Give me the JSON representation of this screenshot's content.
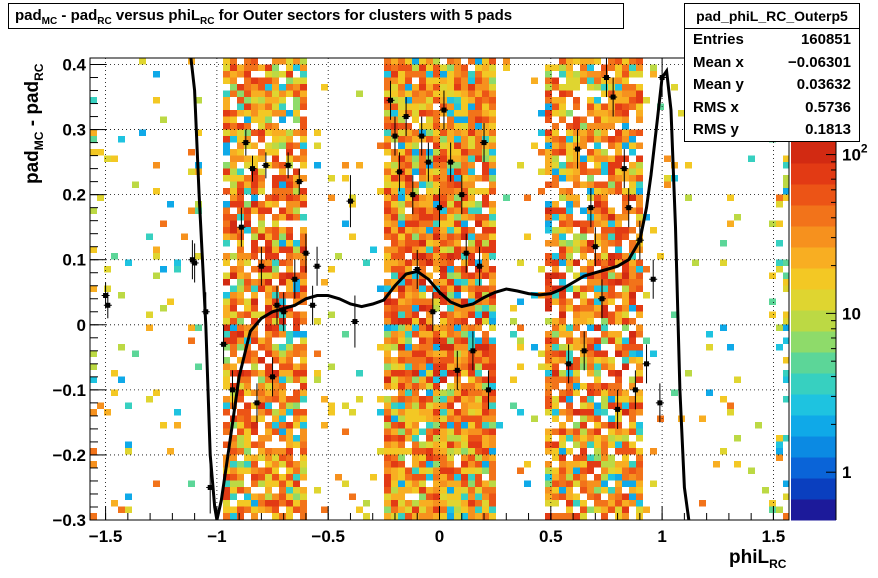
{
  "title": {
    "p1": "pad",
    "s1": "MC",
    "p2": " - pad",
    "s2": "RC",
    "p3": " versus phiL",
    "s3": "RC",
    "p4": " for Outer sectors for clusters with 5 pads"
  },
  "stats": {
    "name": "pad_phiL_RC_Outerp5",
    "rows": [
      {
        "label": "Entries",
        "value": "160851"
      },
      {
        "label": "Mean x",
        "value": "−0.06301"
      },
      {
        "label": "Mean y",
        "value": "0.03632"
      },
      {
        "label": "RMS x",
        "value": "0.5736"
      },
      {
        "label": "RMS y",
        "value": "0.1813"
      }
    ]
  },
  "colors": {
    "palette": [
      "#1c1a9a",
      "#0a3fbf",
      "#0a64d8",
      "#0b8ae3",
      "#0fa9e8",
      "#1ec3e0",
      "#37d0c0",
      "#5cd698",
      "#8edb6a",
      "#bcd944",
      "#dfd530",
      "#f3c824",
      "#f8ae22",
      "#f6911e",
      "#f2731a",
      "#ec5416",
      "#e23a14",
      "#d22a12"
    ],
    "curve": "#000000",
    "points": "#000000"
  },
  "chart_data": {
    "type": "heatmap",
    "title": "pad_MC - pad_RC versus phiL_RC for Outer sectors for clusters with 5 pads",
    "xlabel": "phiL_RC",
    "ylabel": "pad_MC - pad_RC",
    "xlim": [
      -1.57,
      1.57
    ],
    "ylim": [
      -0.3,
      0.41
    ],
    "xticks": [
      -1.5,
      -1,
      -0.5,
      0,
      0.5,
      1,
      1.5
    ],
    "xtick_labels": [
      "−1.5",
      "−1",
      "−0.5",
      "0",
      "0.5",
      "1",
      "1.5"
    ],
    "yticks": [
      -0.3,
      -0.2,
      -0.1,
      0,
      0.1,
      0.2,
      0.3,
      0.4
    ],
    "ytick_labels": [
      "−0.3",
      "−0.2",
      "−0.1",
      "0",
      "0.1",
      "0.2",
      "0.3",
      "0.4"
    ],
    "zscale": "log",
    "colorbar_labels": [
      {
        "value": 1,
        "label": "1"
      },
      {
        "value": 10,
        "label": "10"
      },
      {
        "value": 100,
        "label": "10",
        "superscript": "2"
      }
    ],
    "grid": true,
    "density_bands": [
      {
        "x": [
          -1.57,
          -1.53
        ],
        "level": 0.25
      },
      {
        "x": [
          -1.53,
          -1.07
        ],
        "level": 0.05
      },
      {
        "x": [
          -0.98,
          -0.6
        ],
        "level": 0.85
      },
      {
        "x": [
          -0.55,
          -0.24
        ],
        "level": 0.05
      },
      {
        "x": [
          -0.24,
          0.25
        ],
        "level": 0.95
      },
      {
        "x": [
          0.25,
          0.48
        ],
        "level": 0.05
      },
      {
        "x": [
          0.48,
          0.92
        ],
        "level": 0.8
      },
      {
        "x": [
          0.92,
          1.52
        ],
        "level": 0.04
      },
      {
        "x": [
          1.52,
          1.57
        ],
        "level": 0.3
      }
    ],
    "fit_curve": {
      "x": [
        -1.12,
        -1.1,
        -1.08,
        -1.05,
        -1.03,
        -1.01,
        -1.0,
        -0.98,
        -0.95,
        -0.9,
        -0.85,
        -0.8,
        -0.75,
        -0.7,
        -0.65,
        -0.6,
        -0.55,
        -0.5,
        -0.45,
        -0.4,
        -0.35,
        -0.3,
        -0.25,
        -0.2,
        -0.15,
        -0.1,
        -0.05,
        0.0,
        0.05,
        0.1,
        0.15,
        0.2,
        0.25,
        0.3,
        0.35,
        0.4,
        0.45,
        0.5,
        0.55,
        0.6,
        0.65,
        0.7,
        0.75,
        0.8,
        0.85,
        0.9,
        0.93,
        0.95,
        0.98,
        1.0,
        1.02,
        1.04,
        1.06,
        1.08,
        1.1,
        1.12
      ],
      "y": [
        0.42,
        0.36,
        0.2,
        0.0,
        -0.2,
        -0.28,
        -0.3,
        -0.27,
        -0.2,
        -0.08,
        -0.01,
        0.01,
        0.02,
        0.025,
        0.03,
        0.04,
        0.045,
        0.045,
        0.04,
        0.032,
        0.028,
        0.032,
        0.038,
        0.06,
        0.078,
        0.082,
        0.07,
        0.05,
        0.035,
        0.028,
        0.032,
        0.042,
        0.05,
        0.055,
        0.052,
        0.048,
        0.046,
        0.048,
        0.055,
        0.065,
        0.075,
        0.08,
        0.085,
        0.09,
        0.1,
        0.13,
        0.18,
        0.23,
        0.32,
        0.38,
        0.39,
        0.33,
        0.15,
        -0.1,
        -0.25,
        -0.3
      ]
    },
    "profile_points": [
      {
        "x": -1.5,
        "y": 0.045,
        "err": 0.02
      },
      {
        "x": -1.49,
        "y": 0.03,
        "err": 0.02
      },
      {
        "x": -1.11,
        "y": 0.1,
        "err": 0.03
      },
      {
        "x": -1.1,
        "y": 0.095,
        "err": 0.03
      },
      {
        "x": -1.05,
        "y": 0.02,
        "err": 0.03
      },
      {
        "x": -1.03,
        "y": -0.25,
        "err": 0.04
      },
      {
        "x": -0.97,
        "y": -0.03,
        "err": 0.03
      },
      {
        "x": -0.93,
        "y": -0.1,
        "err": 0.03
      },
      {
        "x": -0.89,
        "y": 0.15,
        "err": 0.03
      },
      {
        "x": -0.87,
        "y": 0.28,
        "err": 0.02
      },
      {
        "x": -0.84,
        "y": 0.24,
        "err": 0.02
      },
      {
        "x": -0.82,
        "y": -0.12,
        "err": 0.03
      },
      {
        "x": -0.8,
        "y": 0.09,
        "err": 0.03
      },
      {
        "x": -0.78,
        "y": 0.245,
        "err": 0.02
      },
      {
        "x": -0.75,
        "y": -0.08,
        "err": 0.03
      },
      {
        "x": -0.73,
        "y": 0.03,
        "err": 0.03
      },
      {
        "x": -0.7,
        "y": 0.02,
        "err": 0.03
      },
      {
        "x": -0.68,
        "y": 0.245,
        "err": 0.02
      },
      {
        "x": -0.65,
        "y": 0.07,
        "err": 0.03
      },
      {
        "x": -0.63,
        "y": 0.22,
        "err": 0.02
      },
      {
        "x": -0.6,
        "y": 0.11,
        "err": 0.03
      },
      {
        "x": -0.57,
        "y": 0.03,
        "err": 0.03
      },
      {
        "x": -0.55,
        "y": 0.09,
        "err": 0.03
      },
      {
        "x": -0.4,
        "y": 0.19,
        "err": 0.04
      },
      {
        "x": -0.38,
        "y": 0.005,
        "err": 0.04
      },
      {
        "x": -0.22,
        "y": 0.345,
        "err": 0.03
      },
      {
        "x": -0.2,
        "y": 0.29,
        "err": 0.03
      },
      {
        "x": -0.18,
        "y": 0.235,
        "err": 0.03
      },
      {
        "x": -0.15,
        "y": 0.32,
        "err": 0.03
      },
      {
        "x": -0.12,
        "y": 0.2,
        "err": 0.03
      },
      {
        "x": -0.1,
        "y": 0.085,
        "err": 0.03
      },
      {
        "x": -0.08,
        "y": 0.29,
        "err": 0.03
      },
      {
        "x": -0.05,
        "y": 0.25,
        "err": 0.03
      },
      {
        "x": -0.03,
        "y": 0.02,
        "err": 0.03
      },
      {
        "x": 0.0,
        "y": 0.18,
        "err": 0.03
      },
      {
        "x": 0.02,
        "y": 0.33,
        "err": 0.03
      },
      {
        "x": 0.05,
        "y": 0.25,
        "err": 0.03
      },
      {
        "x": 0.08,
        "y": -0.07,
        "err": 0.03
      },
      {
        "x": 0.1,
        "y": 0.2,
        "err": 0.03
      },
      {
        "x": 0.12,
        "y": 0.11,
        "err": 0.03
      },
      {
        "x": 0.15,
        "y": -0.04,
        "err": 0.03
      },
      {
        "x": 0.18,
        "y": 0.09,
        "err": 0.03
      },
      {
        "x": 0.2,
        "y": 0.28,
        "err": 0.03
      },
      {
        "x": 0.22,
        "y": -0.1,
        "err": 0.03
      },
      {
        "x": 0.58,
        "y": -0.06,
        "err": 0.03
      },
      {
        "x": 0.62,
        "y": 0.27,
        "err": 0.03
      },
      {
        "x": 0.65,
        "y": -0.04,
        "err": 0.03
      },
      {
        "x": 0.68,
        "y": 0.18,
        "err": 0.03
      },
      {
        "x": 0.7,
        "y": 0.12,
        "err": 0.03
      },
      {
        "x": 0.73,
        "y": 0.04,
        "err": 0.03
      },
      {
        "x": 0.75,
        "y": 0.38,
        "err": 0.03
      },
      {
        "x": 0.78,
        "y": 0.35,
        "err": 0.03
      },
      {
        "x": 0.8,
        "y": -0.13,
        "err": 0.03
      },
      {
        "x": 0.83,
        "y": 0.24,
        "err": 0.03
      },
      {
        "x": 0.85,
        "y": 0.18,
        "err": 0.03
      },
      {
        "x": 0.88,
        "y": -0.1,
        "err": 0.03
      },
      {
        "x": 0.9,
        "y": 0.13,
        "err": 0.03
      },
      {
        "x": 0.93,
        "y": -0.06,
        "err": 0.03
      },
      {
        "x": 0.96,
        "y": 0.07,
        "err": 0.03
      },
      {
        "x": 0.99,
        "y": -0.12,
        "err": 0.03
      },
      {
        "x": 1.0,
        "y": 0.38,
        "err": 0.03
      }
    ]
  }
}
